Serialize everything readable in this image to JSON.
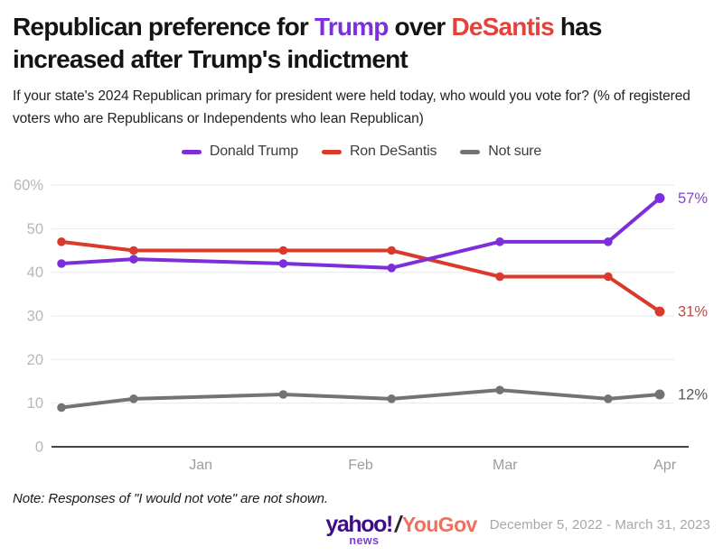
{
  "header": {
    "title": {
      "pre": "Republican preference for ",
      "trump": "Trump",
      "mid": " over ",
      "desantis": "DeSantis",
      "post": " has increased after Trump's indictment"
    },
    "subtitle": "If your state's 2024 Republican primary for president were held today, who would you vote for? (% of registered voters who are Republicans or Independents who lean Republican)"
  },
  "legend": {
    "items": [
      {
        "label": "Donald Trump",
        "color": "#7D2ED8"
      },
      {
        "label": "Ron DeSantis",
        "color": "#D93A2B"
      },
      {
        "label": "Not sure",
        "color": "#737376"
      }
    ]
  },
  "chart_data": {
    "type": "line",
    "x_days": [
      0,
      14,
      43,
      64,
      85,
      106,
      116
    ],
    "x_axis": {
      "day_min": 0,
      "day_max": 116,
      "month_ticks": [
        {
          "label": "Jan",
          "day": 27
        },
        {
          "label": "Feb",
          "day": 58
        },
        {
          "label": "Mar",
          "day": 86
        },
        {
          "label": "Apr",
          "day": 117
        }
      ]
    },
    "y_axis": {
      "min": 0,
      "max": 60,
      "step": 10,
      "tick_labels": [
        "0",
        "10",
        "20",
        "30",
        "40",
        "50",
        "60%"
      ]
    },
    "series": [
      {
        "name": "Donald Trump",
        "color": "#7D2ED8",
        "values": [
          42,
          43,
          42,
          41,
          47,
          47,
          57
        ],
        "end_label": "57%",
        "end_label_color": "#8445C9"
      },
      {
        "name": "Ron DeSantis",
        "color": "#D93A2B",
        "values": [
          47,
          45,
          45,
          45,
          39,
          39,
          31
        ],
        "end_label": "31%",
        "end_label_color": "#CE4437"
      },
      {
        "name": "Not sure",
        "color": "#737376",
        "values": [
          9,
          11,
          12,
          11,
          13,
          11,
          12
        ],
        "end_label": "12%",
        "end_label_color": "#56565A"
      }
    ],
    "grid": true,
    "legend_position": "top",
    "title": "Republican preference for Trump over DeSantis has increased after Trump's indictment"
  },
  "footer": {
    "note": "Note: Responses of \"I would not vote\" are not shown.",
    "logo": {
      "yahoo": "yahoo!",
      "news": "news",
      "slash": "/",
      "yougov": "YouGov"
    },
    "date_range": "December 5, 2022 - March 31, 2023"
  },
  "colors": {
    "title_trump": "#7B2FE0",
    "title_desantis": "#E5423B",
    "yahoo_purple": "#3F0D85",
    "news_purple": "#7E3BD9",
    "slash_dark": "#26262C",
    "yougov_coral": "#F0705C",
    "date_gray": "#A7A7AE",
    "grid_line": "#EAEAED",
    "axis_line": "#424247",
    "y_tick": "#B6B6BD",
    "x_tick": "#9C9CA3"
  }
}
